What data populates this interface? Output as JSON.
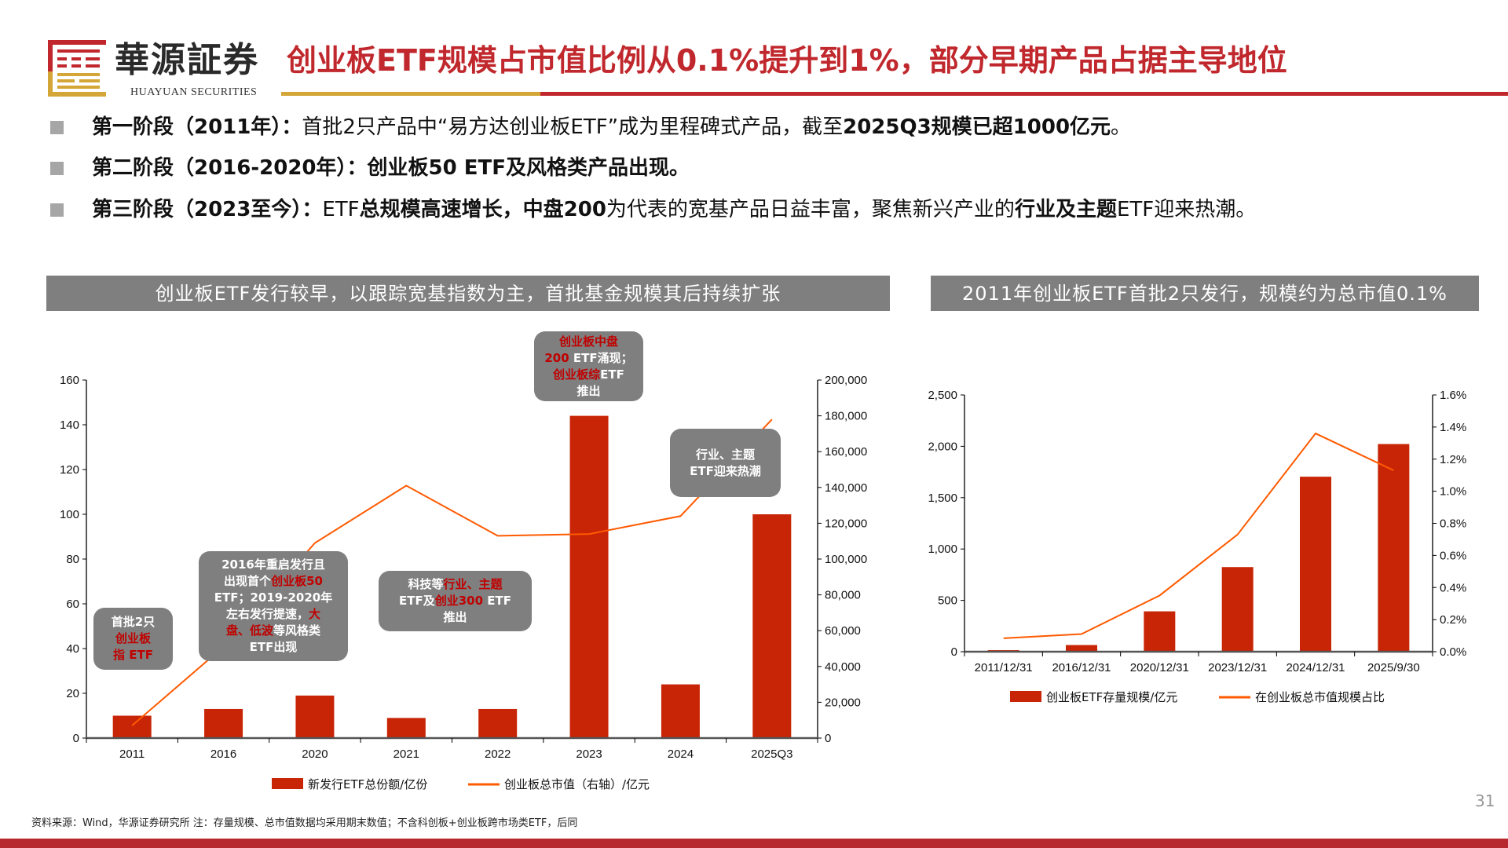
{
  "brand": {
    "name": "華源証券",
    "name_en": "HUAYUAN SECURITIES"
  },
  "title": "创业板ETF规模占市值比例从0.1%提升到1%，部分早期产品占据主导地位",
  "bullets": [
    [
      {
        "t": "第一阶段（2011年）：",
        "b": true
      },
      {
        "t": "首批2只产品中“易方达创业板ETF”成为里程碑式产品，截至",
        "b": false
      },
      {
        "t": "2025Q3规模已超1000亿元",
        "b": true
      },
      {
        "t": "。",
        "b": false
      }
    ],
    [
      {
        "t": "第二阶段（2016-2020年）：创业板50 ETF及风格类产品出现。",
        "b": true
      }
    ],
    [
      {
        "t": "第三阶段（2023至今）：",
        "b": true
      },
      {
        "t": "ETF",
        "b": false
      },
      {
        "t": "总规模高速增长，中盘200",
        "b": true
      },
      {
        "t": "为代表的宽基产品日益丰富，聚焦新兴产业的",
        "b": false
      },
      {
        "t": "行业及主题",
        "b": true
      },
      {
        "t": "ETF迎来热潮。",
        "b": false
      }
    ]
  ],
  "colors": {
    "bar": "#C82506",
    "line": "#FF5A00",
    "title": "#C0282D",
    "gold": "#D4A537",
    "header_bg": "#7F7F7F"
  },
  "chart_data": [
    {
      "type": "bar+line",
      "title": "创业板ETF发行较早，以跟踪宽基指数为主，首批基金规模其后持续扩张",
      "categories": [
        "2011",
        "2016",
        "2020",
        "2021",
        "2022",
        "2023",
        "2024",
        "2025Q3"
      ],
      "series": [
        {
          "name": "新发行ETF总份额/亿份",
          "type": "bar",
          "axis": "left",
          "values": [
            10,
            13,
            19,
            9,
            13,
            144,
            24,
            100
          ]
        },
        {
          "name": "创业板总市值（右轴）/亿元",
          "type": "line",
          "axis": "right",
          "values": [
            7000,
            51000,
            109000,
            141000,
            113000,
            114000,
            124000,
            178000
          ]
        }
      ],
      "ylim": [
        0,
        160
      ],
      "yticks": [
        "0",
        "20",
        "40",
        "60",
        "80",
        "100",
        "120",
        "140",
        "160"
      ],
      "y2lim": [
        0,
        200000
      ],
      "y2ticks": [
        "0",
        "20,000",
        "40,000",
        "60,000",
        "80,000",
        "100,000",
        "120,000",
        "140,000",
        "160,000",
        "180,000",
        "200,000"
      ],
      "legend": "bottom",
      "annotations": [
        [
          [
            {
              "t": "首批2只"
            }
          ],
          [
            {
              "t": "创业板",
              "r": true
            }
          ],
          [
            {
              "t": "指",
              "r": true
            },
            {
              "t": " ETF",
              "r": true
            }
          ]
        ],
        [
          [
            {
              "t": "2016年重启发行且"
            }
          ],
          [
            {
              "t": "出现首个"
            },
            {
              "t": "创业板50",
              "r": true
            }
          ],
          [
            {
              "t": "ETF；2019-2020年"
            }
          ],
          [
            {
              "t": "左右发行提速，"
            },
            {
              "t": "大",
              "r": true
            }
          ],
          [
            {
              "t": "盘、低波",
              "r": true
            },
            {
              "t": "等风格类"
            }
          ],
          [
            {
              "t": "ETF出现"
            }
          ]
        ],
        [
          [
            {
              "t": "科技等"
            },
            {
              "t": "行业、主题",
              "r": true
            }
          ],
          [
            {
              "t": "ETF及"
            },
            {
              "t": "创业300",
              "r": true
            },
            {
              "t": " ETF"
            }
          ],
          [
            {
              "t": "推出"
            }
          ]
        ],
        [
          [
            {
              "t": "创业板中盘",
              "r": true
            }
          ],
          [
            {
              "t": "200",
              "r": true
            },
            {
              "t": " ETF涌现；"
            }
          ],
          [
            {
              "t": "创业板综",
              "r": true
            },
            {
              "t": "ETF"
            }
          ],
          [
            {
              "t": "推出"
            }
          ]
        ],
        [
          [
            {
              "t": "行业、主题"
            }
          ],
          [
            {
              "t": "ETF迎来热潮"
            }
          ]
        ]
      ]
    },
    {
      "type": "bar+line",
      "title": "2011年创业板ETF首批2只发行，规模约为总市值0.1%",
      "categories": [
        "2011/12/31",
        "2016/12/31",
        "2020/12/31",
        "2023/12/31",
        "2024/12/31",
        "2025/9/30"
      ],
      "series": [
        {
          "name": "创业板ETF存量规模/亿元",
          "type": "bar",
          "axis": "left",
          "values": [
            15,
            65,
            393,
            824,
            1704,
            2022
          ]
        },
        {
          "name": "在创业板总市值规模占比",
          "type": "line",
          "axis": "right",
          "values": [
            0.084,
            0.11,
            0.35,
            0.73,
            1.36,
            1.13
          ]
        }
      ],
      "ylim": [
        0,
        2500
      ],
      "yticks": [
        "0",
        "500",
        "1,000",
        "1,500",
        "2,000",
        "2,500"
      ],
      "y2lim": [
        0,
        1.6
      ],
      "y2ticks": [
        "0.0%",
        "0.2%",
        "0.4%",
        "0.6%",
        "0.8%",
        "1.0%",
        "1.2%",
        "1.4%",
        "1.6%"
      ],
      "legend": "bottom"
    }
  ],
  "footer": {
    "source": "资料来源：Wind，华源证券研究所   注：存量规模、总市值数据均采用期末数值；不含科创板+创业板跨市场类ETF，后同",
    "page": "31"
  }
}
